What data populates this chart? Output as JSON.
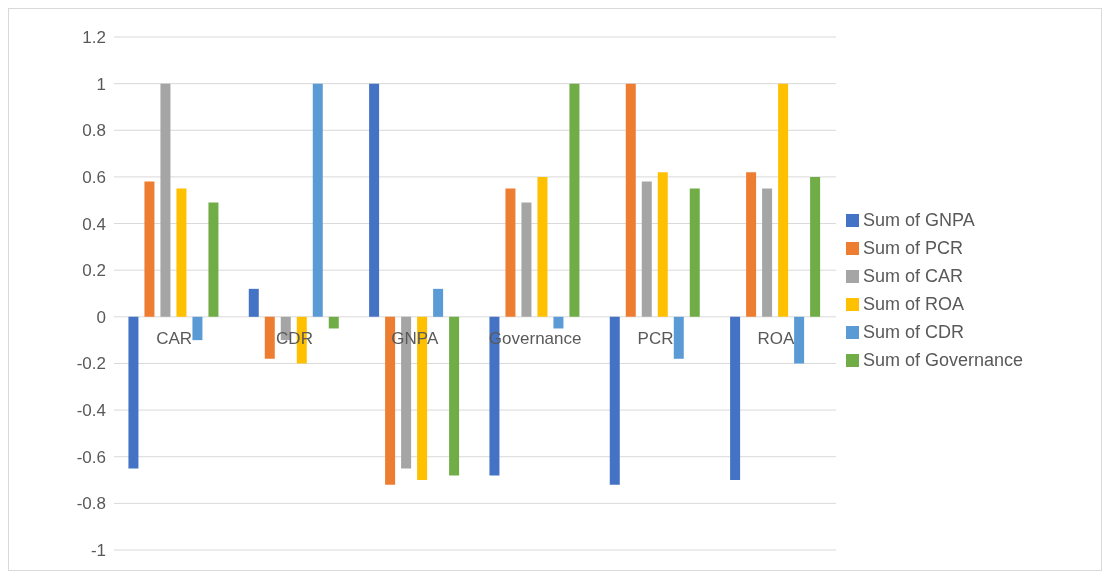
{
  "chart_data": {
    "type": "bar",
    "categories": [
      "CAR",
      "CDR",
      "GNPA",
      "Governance",
      "PCR",
      "ROA"
    ],
    "series": [
      {
        "name": "Sum of GNPA",
        "color": "#4472c4",
        "values": [
          -0.65,
          0.12,
          1,
          -0.68,
          -0.72,
          -0.7
        ]
      },
      {
        "name": "Sum of PCR",
        "color": "#ed7d31",
        "values": [
          0.58,
          -0.18,
          -0.72,
          0.55,
          1,
          0.62
        ]
      },
      {
        "name": "Sum of CAR",
        "color": "#a5a5a5",
        "values": [
          1,
          -0.1,
          -0.65,
          0.49,
          0.58,
          0.55
        ]
      },
      {
        "name": "Sum of ROA",
        "color": "#ffc000",
        "values": [
          0.55,
          -0.2,
          -0.7,
          0.6,
          0.62,
          1
        ]
      },
      {
        "name": "Sum of CDR",
        "color": "#5b9bd5",
        "values": [
          -0.1,
          1,
          0.12,
          -0.05,
          -0.18,
          -0.2
        ]
      },
      {
        "name": "Sum of Governance",
        "color": "#70ad47",
        "values": [
          0.49,
          -0.05,
          -0.68,
          1,
          0.55,
          0.6
        ]
      }
    ],
    "ylim": [
      -1,
      1.2
    ],
    "yticks": [
      -1,
      -0.8,
      -0.6,
      -0.4,
      -0.2,
      0,
      0.2,
      0.4,
      0.6,
      0.8,
      1,
      1.2
    ],
    "grid": "y",
    "legend": "right"
  }
}
